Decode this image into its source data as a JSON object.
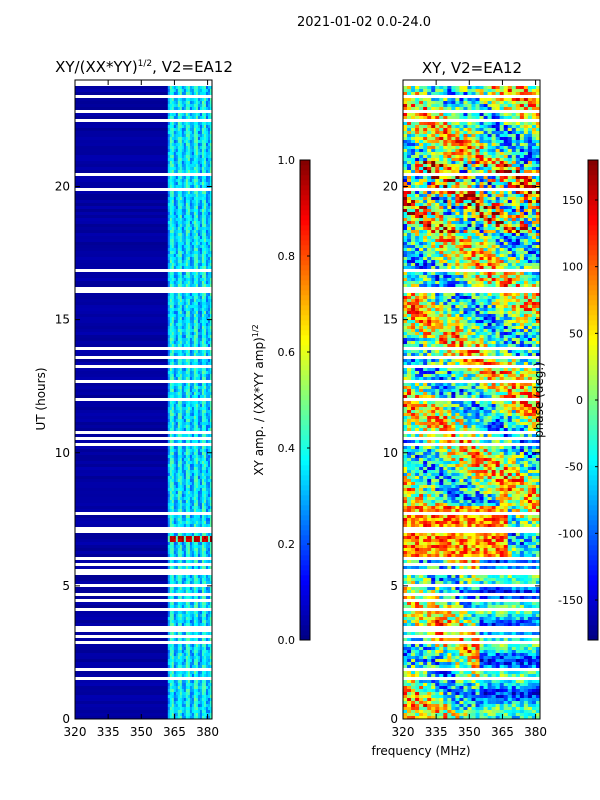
{
  "figure_title": "2021-01-02 0.0-24.0",
  "shared_xlabel": "frequency (MHz)",
  "chart_data": [
    {
      "type": "heatmap",
      "title_main": "XY/(XX*YY)",
      "title_sup": "1/2",
      "title_tail": ", V2=EA12",
      "ylabel": "UT (hours)",
      "xlim": [
        320,
        382
      ],
      "ylim": [
        0,
        24
      ],
      "xticks": [
        320,
        335,
        350,
        365,
        380
      ],
      "yticks": [
        0,
        5,
        10,
        15,
        20
      ],
      "colormap": "jet",
      "colorbar": {
        "label_main": "XY amp. / (XX*YY amp)",
        "label_sup": "1/2",
        "range": [
          0.0,
          1.0
        ],
        "ticks": [
          "0.0",
          "0.2",
          "0.4",
          "0.6",
          "0.8",
          "1.0"
        ],
        "tick_values": [
          0.0,
          0.2,
          0.4,
          0.6,
          0.8,
          1.0
        ]
      },
      "bright_band_MHz": [
        362,
        382
      ],
      "peak_hours": [
        6.6,
        6.9
      ]
    },
    {
      "type": "heatmap",
      "title": "XY, V2=EA12",
      "ylabel": "",
      "xlim": [
        320,
        382
      ],
      "ylim": [
        0,
        24
      ],
      "xticks": [
        320,
        335,
        350,
        365,
        380
      ],
      "yticks": [
        0,
        5,
        10,
        15,
        20
      ],
      "colormap": "jet",
      "colorbar": {
        "label": "phase (deg.)",
        "range": [
          -180,
          180
        ],
        "ticks": [
          "-150",
          "-100",
          "-50",
          "0",
          "50",
          "100",
          "150"
        ],
        "tick_values": [
          -150,
          -100,
          -50,
          0,
          50,
          100,
          150
        ]
      }
    }
  ],
  "colors": {
    "background": "#ffffff",
    "gap": "#ffffff",
    "axis": "#000000"
  }
}
